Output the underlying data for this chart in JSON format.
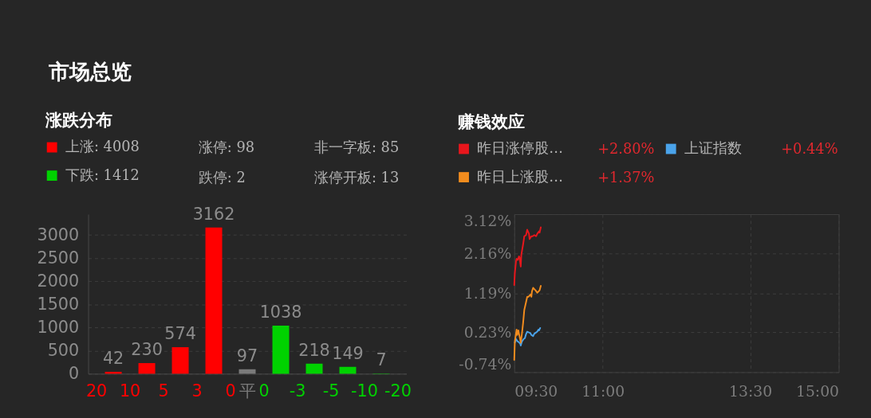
{
  "chart_data": [
    {
      "type": "bar",
      "title": "涨跌分布",
      "annotations": [
        "市场总览",
        "涨停: 98",
        "跌停: 2",
        "非一字板: 85",
        "涨停开板: 13"
      ],
      "categories": [
        "20",
        null,
        "10",
        null,
        "5",
        null,
        "3",
        null,
        "0",
        "平",
        "0",
        null,
        "-3",
        null,
        "-5",
        null,
        "-10",
        null,
        "-20"
      ],
      "series": [
        {
          "name": "上涨: 4008",
          "color": "#ff0000",
          "values": [
            null,
            42,
            null,
            230,
            null,
            574,
            null,
            3162,
            null,
            null,
            null,
            null,
            null,
            null,
            null,
            null,
            null,
            null,
            null
          ]
        },
        {
          "color": "#7a7a7a",
          "values": [
            null,
            null,
            null,
            null,
            null,
            null,
            null,
            null,
            null,
            97,
            null,
            null,
            null,
            null,
            null,
            null,
            null,
            null,
            null
          ]
        },
        {
          "name": "下跌: 1412",
          "color": "#00d200",
          "values": [
            null,
            null,
            null,
            null,
            null,
            null,
            null,
            null,
            null,
            null,
            null,
            1038,
            null,
            218,
            null,
            149,
            null,
            7,
            null
          ]
        }
      ],
      "ylim": [
        0,
        3450
      ],
      "yticks": [
        0,
        500,
        1000,
        1500,
        2000,
        2500,
        3000
      ],
      "grid": "y",
      "legend": "top left",
      "data_labels": true
    },
    {
      "type": "line",
      "title": "赚钱效应",
      "annotations": [
        "+2.80%",
        "+0.44%",
        "+1.37%"
      ],
      "series": [
        {
          "name": "昨日涨停股…",
          "color": "#e8161c",
          "x": [
            9.5,
            9.51,
            9.53,
            9.54,
            9.56,
            9.58,
            9.59,
            9.61,
            9.62,
            9.65,
            9.67,
            9.7,
            9.72,
            9.75,
            9.76,
            9.79,
            9.81,
            9.84,
            9.87,
            9.89,
            9.92,
            9.93,
            9.95
          ],
          "values": [
            1.39,
            1.68,
            1.97,
            2.03,
            2.0,
            2.09,
            2.06,
            1.84,
            2.13,
            2.38,
            2.58,
            2.61,
            2.74,
            2.64,
            2.51,
            2.58,
            2.58,
            2.61,
            2.58,
            2.64,
            2.7,
            2.67,
            2.8
          ]
        },
        {
          "name": "上证指数",
          "color": "#4aa3ea",
          "x": [
            9.51,
            9.53,
            9.55,
            9.57,
            9.6,
            9.61,
            9.63,
            9.66,
            9.68,
            9.7,
            9.72,
            9.75,
            9.77,
            9.79,
            9.82,
            9.84,
            9.87,
            9.89,
            9.91,
            9.92,
            9.94
          ],
          "values": [
            -0.02,
            0.07,
            0.02,
            0.0,
            -0.04,
            -0.09,
            0.01,
            0.07,
            0.09,
            0.19,
            0.25,
            0.23,
            0.22,
            0.17,
            0.14,
            0.2,
            0.23,
            0.25,
            0.3,
            0.28,
            0.34
          ]
        },
        {
          "name": "昨日上涨股…",
          "color": "#f28c1e",
          "x": [
            9.5,
            9.51,
            9.53,
            9.54,
            9.55,
            9.57,
            9.58,
            9.6,
            9.61,
            9.63,
            9.65,
            9.67,
            9.7,
            9.72,
            9.74,
            9.76,
            9.78,
            9.79,
            9.8,
            9.82,
            9.84,
            9.86,
            9.89,
            9.91,
            9.93,
            9.95
          ],
          "values": [
            -0.44,
            0.01,
            0.2,
            0.3,
            0.17,
            0.28,
            0.2,
            0.07,
            -0.02,
            0.2,
            0.46,
            0.78,
            0.97,
            1.1,
            1.1,
            1.13,
            1.16,
            1.1,
            1.23,
            1.32,
            1.29,
            1.26,
            1.2,
            1.23,
            1.26,
            1.37
          ]
        }
      ],
      "xlim": [
        9.5,
        15
      ],
      "xticks": [
        {
          "value": 9.5,
          "label": "09:30"
        },
        {
          "value": 11,
          "label": "11:00"
        },
        {
          "value": 13.5,
          "label": "13:30"
        },
        {
          "value": 15,
          "label": "15:00"
        }
      ],
      "ylim": [
        -0.74,
        3.12
      ],
      "yticks": [
        {
          "value": -0.74,
          "label": "-0.74%"
        },
        {
          "value": 0.23,
          "label": "0.23%"
        },
        {
          "value": 1.19,
          "label": "1.19%"
        },
        {
          "value": 2.16,
          "label": "2.16%"
        },
        {
          "value": 3.12,
          "label": "3.12%"
        }
      ],
      "grid": true,
      "legend": "top left"
    }
  ]
}
